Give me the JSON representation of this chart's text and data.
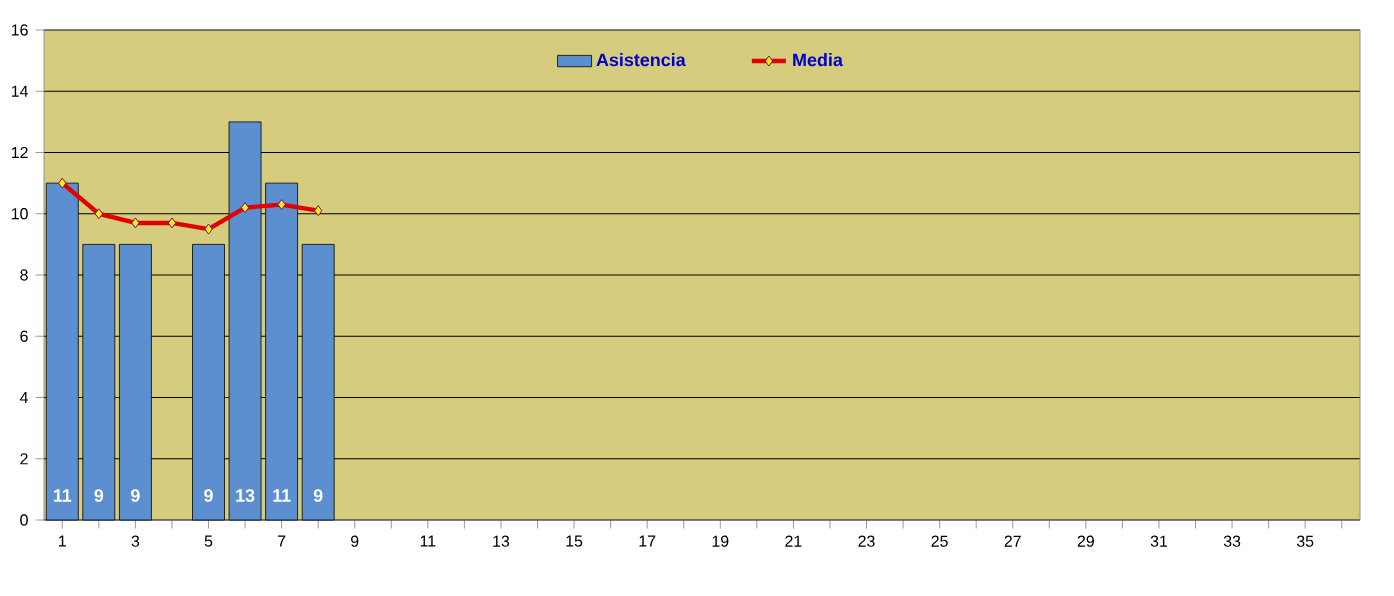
{
  "chart_data": {
    "type": "bar",
    "categories": [
      "1",
      null,
      "3",
      null,
      "5",
      null,
      "7",
      null,
      "9",
      null,
      "11",
      null,
      "13",
      null,
      "15",
      null,
      "17",
      null,
      "19",
      null,
      "21",
      null,
      "23",
      null,
      "25",
      null,
      "27",
      null,
      "29",
      null,
      "31",
      null,
      "33",
      null,
      "35",
      null
    ],
    "series": [
      {
        "name": "Asistencia",
        "color": "#5b8fd0",
        "values": [
          11,
          9,
          9,
          null,
          9,
          13,
          11,
          9,
          null,
          null,
          null,
          null,
          null,
          null,
          null,
          null,
          null,
          null,
          null,
          null,
          null,
          null,
          null,
          null,
          null,
          null,
          null,
          null,
          null,
          null,
          null,
          null,
          null,
          null,
          null,
          null
        ],
        "value_labels": [
          "11",
          "9",
          "9",
          null,
          "9",
          "13",
          "11",
          "9",
          null,
          null,
          null,
          null,
          null,
          null,
          null,
          null,
          null,
          null,
          null,
          null,
          null,
          null,
          null,
          null,
          null,
          null,
          null,
          null,
          null,
          null,
          null,
          null,
          null,
          null,
          null,
          null
        ]
      },
      {
        "name": "Media",
        "type": "line",
        "color": "#e00000",
        "marker": "diamond",
        "values": [
          11,
          10,
          9.7,
          9.7,
          9.5,
          10.2,
          10.3,
          10.1,
          null,
          null,
          null,
          null,
          null,
          null,
          null,
          null,
          null,
          null,
          null,
          null,
          null,
          null,
          null,
          null,
          null,
          null,
          null,
          null,
          null,
          null,
          null,
          null,
          null,
          null,
          null,
          null
        ]
      }
    ],
    "ylim": [
      0,
      16
    ],
    "yticks": [
      0,
      2,
      4,
      6,
      8,
      10,
      12,
      14,
      16
    ],
    "grid": "y",
    "legend": "top"
  }
}
